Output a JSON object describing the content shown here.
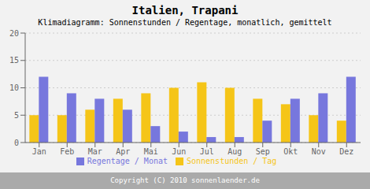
{
  "chart_data": {
    "type": "bar",
    "title": "Italien, Trapani",
    "subtitle": "Klimadiagramm: Sonnenstunden / Regentage, monatlich, gemittelt",
    "categories": [
      "Jan",
      "Feb",
      "Mar",
      "Apr",
      "Mai",
      "Jun",
      "Jul",
      "Aug",
      "Sep",
      "Okt",
      "Nov",
      "Dez"
    ],
    "series": [
      {
        "name": "Sonnenstunden / Tag",
        "color": "#F5C518",
        "values": [
          5,
          5,
          6,
          8,
          9,
          10,
          11,
          10,
          8,
          7,
          5,
          4
        ]
      },
      {
        "name": "Regentage / Monat",
        "color": "#7777DD",
        "values": [
          12,
          9,
          8,
          6,
          3,
          2,
          1,
          1,
          4,
          8,
          9,
          12
        ]
      }
    ],
    "ylim": [
      0,
      20
    ],
    "yticks": [
      0,
      5,
      10,
      15,
      20
    ],
    "grid": true,
    "legend": "bottom",
    "annotations": [
      "Copyright (C) 2010 sonnenlaender.de"
    ]
  }
}
